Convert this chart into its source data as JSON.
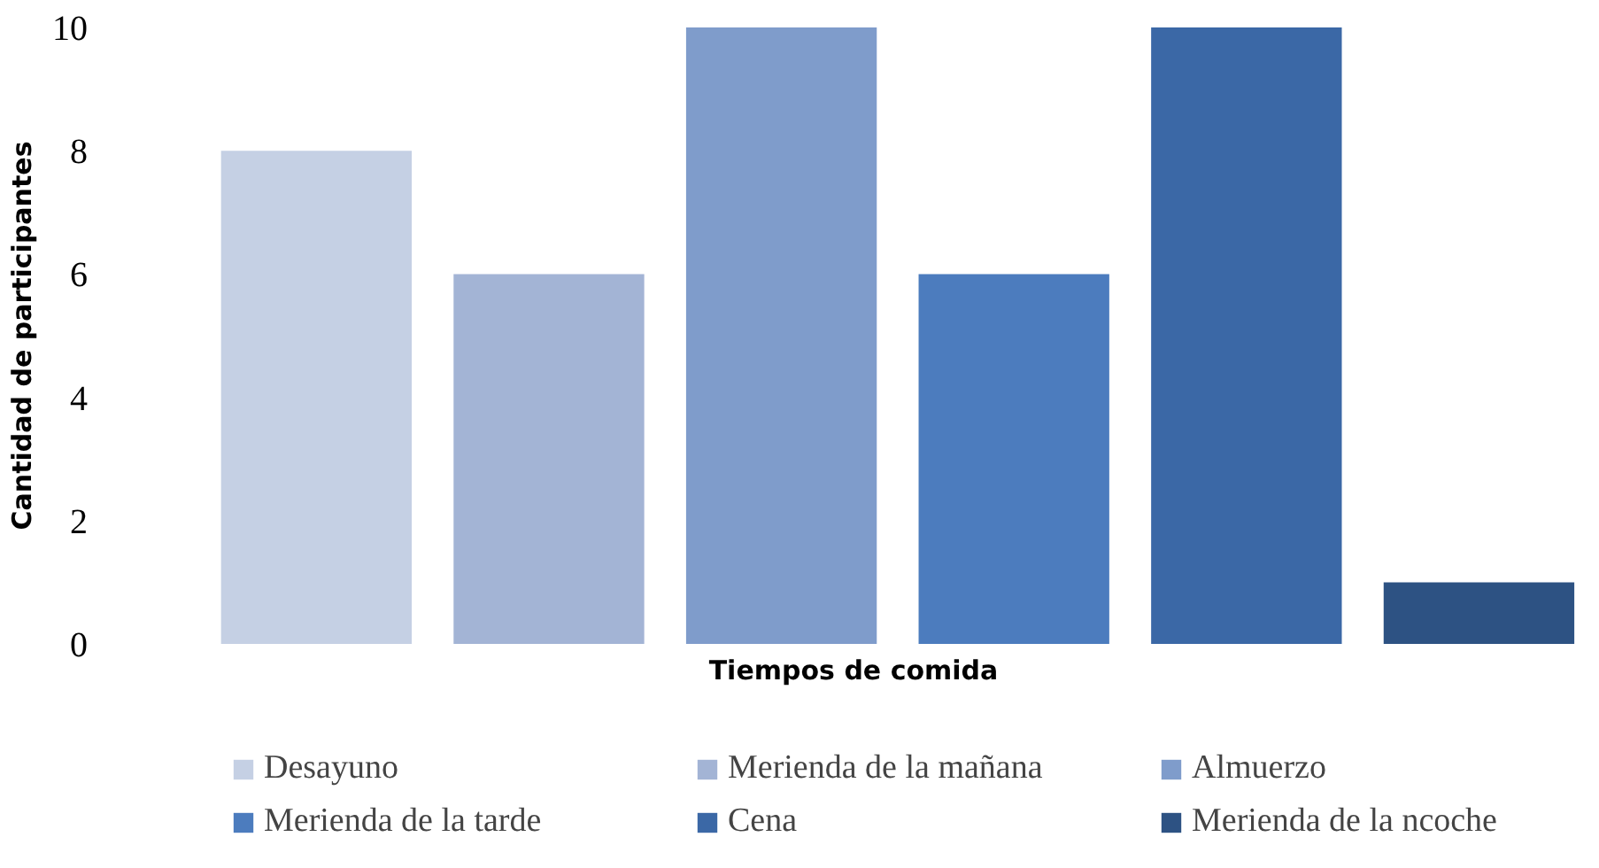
{
  "chart_data": {
    "type": "bar",
    "stacked": true,
    "xlabel": "Tiempos de comida",
    "ylabel": "Cantidad de participantes",
    "categories": [
      null,
      null,
      null,
      null,
      null,
      null
    ],
    "series": [
      {
        "name": "Desayuno",
        "color": "#c5d0e4",
        "values": [
          8,
          null,
          null,
          null,
          null,
          null
        ]
      },
      {
        "name": "Merienda de la mañana",
        "color": "#a3b4d5",
        "values": [
          null,
          6,
          null,
          null,
          null,
          null
        ]
      },
      {
        "name": "Almuerzo",
        "color": "#7f9ccb",
        "values": [
          null,
          null,
          10,
          null,
          null,
          null
        ]
      },
      {
        "name": "Merienda de la tarde",
        "color": "#4c7cbe",
        "values": [
          null,
          null,
          null,
          6,
          null,
          null
        ]
      },
      {
        "name": "Cena",
        "color": "#3b68a6",
        "values": [
          null,
          null,
          null,
          null,
          10,
          null
        ]
      },
      {
        "name": "Merienda de la ncoche",
        "color": "#2d5283",
        "values": [
          null,
          null,
          null,
          null,
          null,
          1
        ]
      }
    ],
    "ylim": [
      0,
      10
    ],
    "yticks": [
      0,
      2,
      4,
      6,
      8,
      10
    ],
    "grid": false,
    "legend": "bottom",
    "tick_labels": "y"
  }
}
